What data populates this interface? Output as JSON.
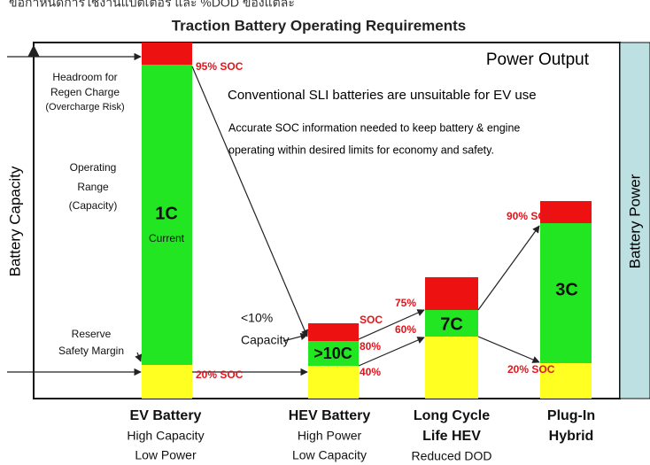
{
  "header": "ข้อกำหนดการใช้งานแบตเตอรี่ และ %DOD ของแต่ละ",
  "title": "Traction Battery Operating Requirements",
  "power_output": "Power Output",
  "notes": [
    "Conventional SLI batteries are unsuitable for EV use",
    "Accurate SOC information needed to keep battery & engine",
    "operating within desired limits for economy and safety."
  ],
  "y_axis_label": "Battery Capacity",
  "right_label": "Battery Power",
  "annotations": {
    "headroom": [
      "Headroom for",
      "Regen Charge",
      "(Overcharge Risk)"
    ],
    "operating": [
      "Operating",
      "Range",
      "(Capacity)"
    ],
    "reserve": [
      "Reserve",
      "Safety Margin"
    ],
    "hev_capacity": [
      "<10%",
      "Capacity"
    ]
  },
  "bars": [
    {
      "name": [
        "EV Battery"
      ],
      "desc": [
        "High Capacity",
        "Low Power"
      ],
      "rate": "1C",
      "rate_note": "Current",
      "levels": [
        "95% SOC",
        "20% SOC"
      ]
    },
    {
      "name": [
        "HEV Battery"
      ],
      "desc": [
        "High Power",
        "Low Capacity"
      ],
      "rate": ">10C",
      "levels": [
        "SOC",
        "80%",
        "40%"
      ]
    },
    {
      "name": [
        "Long Cycle",
        "Life HEV"
      ],
      "desc": [
        "Reduced DOD"
      ],
      "rate": "7C",
      "levels": [
        "75%",
        "60%"
      ]
    },
    {
      "name": [
        "Plug-In",
        "Hybrid"
      ],
      "desc": [],
      "rate": "3C",
      "levels": [
        "90% SOC",
        "20% SOC"
      ]
    }
  ]
}
